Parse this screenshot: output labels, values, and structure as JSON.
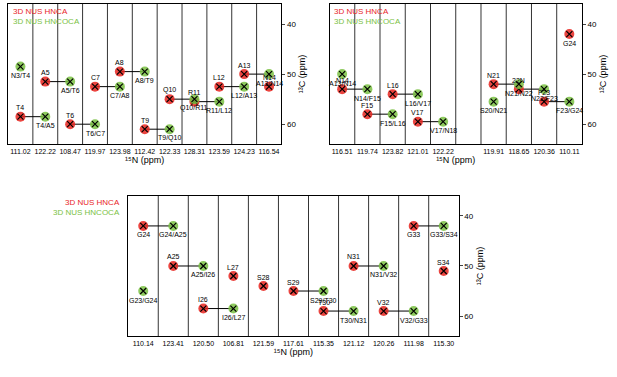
{
  "chart_data": [
    {
      "type": "scatter",
      "xlabel": "¹⁵N (ppm)",
      "ylabel": "¹³C (ppm)",
      "ylim": [
        64,
        36
      ],
      "yticks": [
        40,
        50,
        60
      ],
      "grid": false,
      "legend": "upper left",
      "categories": [
        "111.02",
        "122.22",
        "108.47",
        "119.97",
        "123.98",
        "112.42",
        "122.33",
        "128.31",
        "123.59",
        "124.23",
        "116.54"
      ],
      "series": [
        {
          "name": "3D NUS HNCA",
          "color": "#e8251f",
          "marker": "x",
          "values": [
            58.5,
            51.5,
            60,
            52.5,
            49.5,
            61,
            55,
            55.5,
            52.5,
            50,
            52.5
          ],
          "labels": [
            "T4",
            "A5",
            "T6",
            "C7",
            "A8",
            "T9",
            "Q10",
            "R11",
            "L12",
            "A13",
            "N14"
          ]
        },
        {
          "name": "3D NUS HNCOCA",
          "color": "#7ac143",
          "marker": "x",
          "values": [
            48.5,
            58.5,
            51.5,
            60,
            52.5,
            49.5,
            61,
            55,
            55.5,
            52.5,
            50
          ],
          "labels": [
            "N3/T4",
            "T4/A5",
            "A5/T6",
            "T6/C7",
            "C7/A8",
            "A8/T9",
            "T9/Q10",
            "Q10/R11",
            "R11/L12",
            "L12/A13",
            "A13/N14"
          ]
        }
      ]
    },
    {
      "type": "scatter",
      "xlabel": "¹⁵N (ppm)",
      "ylabel": "¹³C (ppm)",
      "ylim": [
        64,
        36
      ],
      "yticks": [
        40,
        50,
        60
      ],
      "grid": false,
      "legend": "upper left",
      "categories": [
        "116.51",
        "119.74",
        "123.82",
        "121.01",
        "122.22",
        null,
        "119.91",
        "118.65",
        "120.36",
        "110.11"
      ],
      "series": [
        {
          "name": "3D NUS HNCA",
          "color": "#e8251f",
          "marker": "x",
          "values": [
            53,
            58,
            54,
            59.5,
            null,
            null,
            52,
            53,
            55.5,
            42
          ],
          "labels": [
            "N14",
            "F15",
            "L16",
            "V17",
            null,
            null,
            "N21",
            "22N",
            "F23",
            "G24"
          ]
        },
        {
          "name": "3D NUS HNCOCA",
          "color": "#7ac143",
          "marker": "x",
          "values": [
            50,
            53,
            58,
            54,
            59.5,
            null,
            55.5,
            52,
            53,
            55.5
          ],
          "labels": [
            "A13/N14",
            "N14/F15",
            "F15/L16",
            "L16/V17",
            "V17/N18",
            null,
            "S20/N21",
            "N21/N22",
            "N22/F23",
            "F23/G24"
          ]
        }
      ]
    },
    {
      "type": "scatter",
      "xlabel": "¹⁵N (ppm)",
      "ylabel": "¹³C (ppm)",
      "ylim": [
        64,
        36
      ],
      "yticks": [
        40,
        50,
        60
      ],
      "grid": false,
      "legend": "left",
      "categories": [
        "110.14",
        "123.41",
        "120.50",
        "106.81",
        "121.59",
        "117.61",
        "115.35",
        "121.12",
        "120.26",
        "111.98",
        "115.30"
      ],
      "series": [
        {
          "name": "3D NUS HNCA",
          "color": "#e8251f",
          "marker": "x",
          "values": [
            42,
            50,
            58.5,
            52,
            54,
            55,
            59,
            50,
            59,
            42,
            51
          ],
          "labels": [
            "G24",
            "A25",
            "I26",
            "L27",
            "S28",
            "S29",
            "T30",
            "N31",
            "V32",
            "G33",
            "S34"
          ]
        },
        {
          "name": "3D NUS HNCOCA",
          "color": "#7ac143",
          "marker": "x",
          "values": [
            55,
            42,
            50,
            58.5,
            null,
            null,
            55,
            59,
            50,
            59,
            42
          ],
          "labels": [
            "G23/G24",
            "G24/A25",
            "A25/I26",
            "I26/L27",
            null,
            null,
            "S29/T30",
            "T30/N31",
            "N31/V32",
            "V32/G33",
            "G33/S34"
          ]
        }
      ]
    }
  ]
}
